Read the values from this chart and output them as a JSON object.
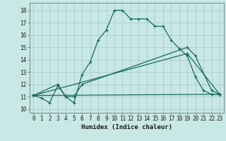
{
  "xlabel": "Humidex (Indice chaleur)",
  "background_color": "#c8e8e5",
  "grid_color": "#a0c8c4",
  "line_color": "#1a6b5a",
  "xlim": [
    -0.5,
    23.5
  ],
  "ylim": [
    9.7,
    18.6
  ],
  "yticks": [
    10,
    11,
    12,
    13,
    14,
    15,
    16,
    17,
    18
  ],
  "xticks": [
    0,
    1,
    2,
    3,
    4,
    5,
    6,
    7,
    8,
    9,
    10,
    11,
    12,
    13,
    14,
    15,
    16,
    17,
    18,
    19,
    20,
    21,
    22,
    23
  ],
  "line1_x": [
    0,
    1,
    2,
    3,
    4,
    5,
    6,
    7,
    8,
    9,
    10,
    11,
    12,
    13,
    14,
    15,
    16,
    17,
    18,
    19,
    20,
    21,
    22,
    23
  ],
  "line1_y": [
    11.1,
    10.9,
    10.5,
    11.9,
    11.0,
    10.5,
    12.8,
    13.8,
    15.6,
    16.4,
    18.0,
    18.0,
    17.3,
    17.3,
    17.3,
    16.7,
    16.7,
    15.6,
    14.9,
    14.3,
    12.6,
    11.5,
    11.2,
    11.2
  ],
  "line2_x": [
    0,
    3,
    4,
    5,
    6,
    19,
    20,
    22,
    23
  ],
  "line2_y": [
    11.1,
    12.0,
    11.0,
    11.0,
    12.0,
    15.0,
    14.3,
    11.5,
    11.2
  ],
  "line3_x": [
    0,
    23
  ],
  "line3_y": [
    11.1,
    11.2
  ],
  "line4_x": [
    0,
    19,
    23
  ],
  "line4_y": [
    11.1,
    14.5,
    11.2
  ]
}
